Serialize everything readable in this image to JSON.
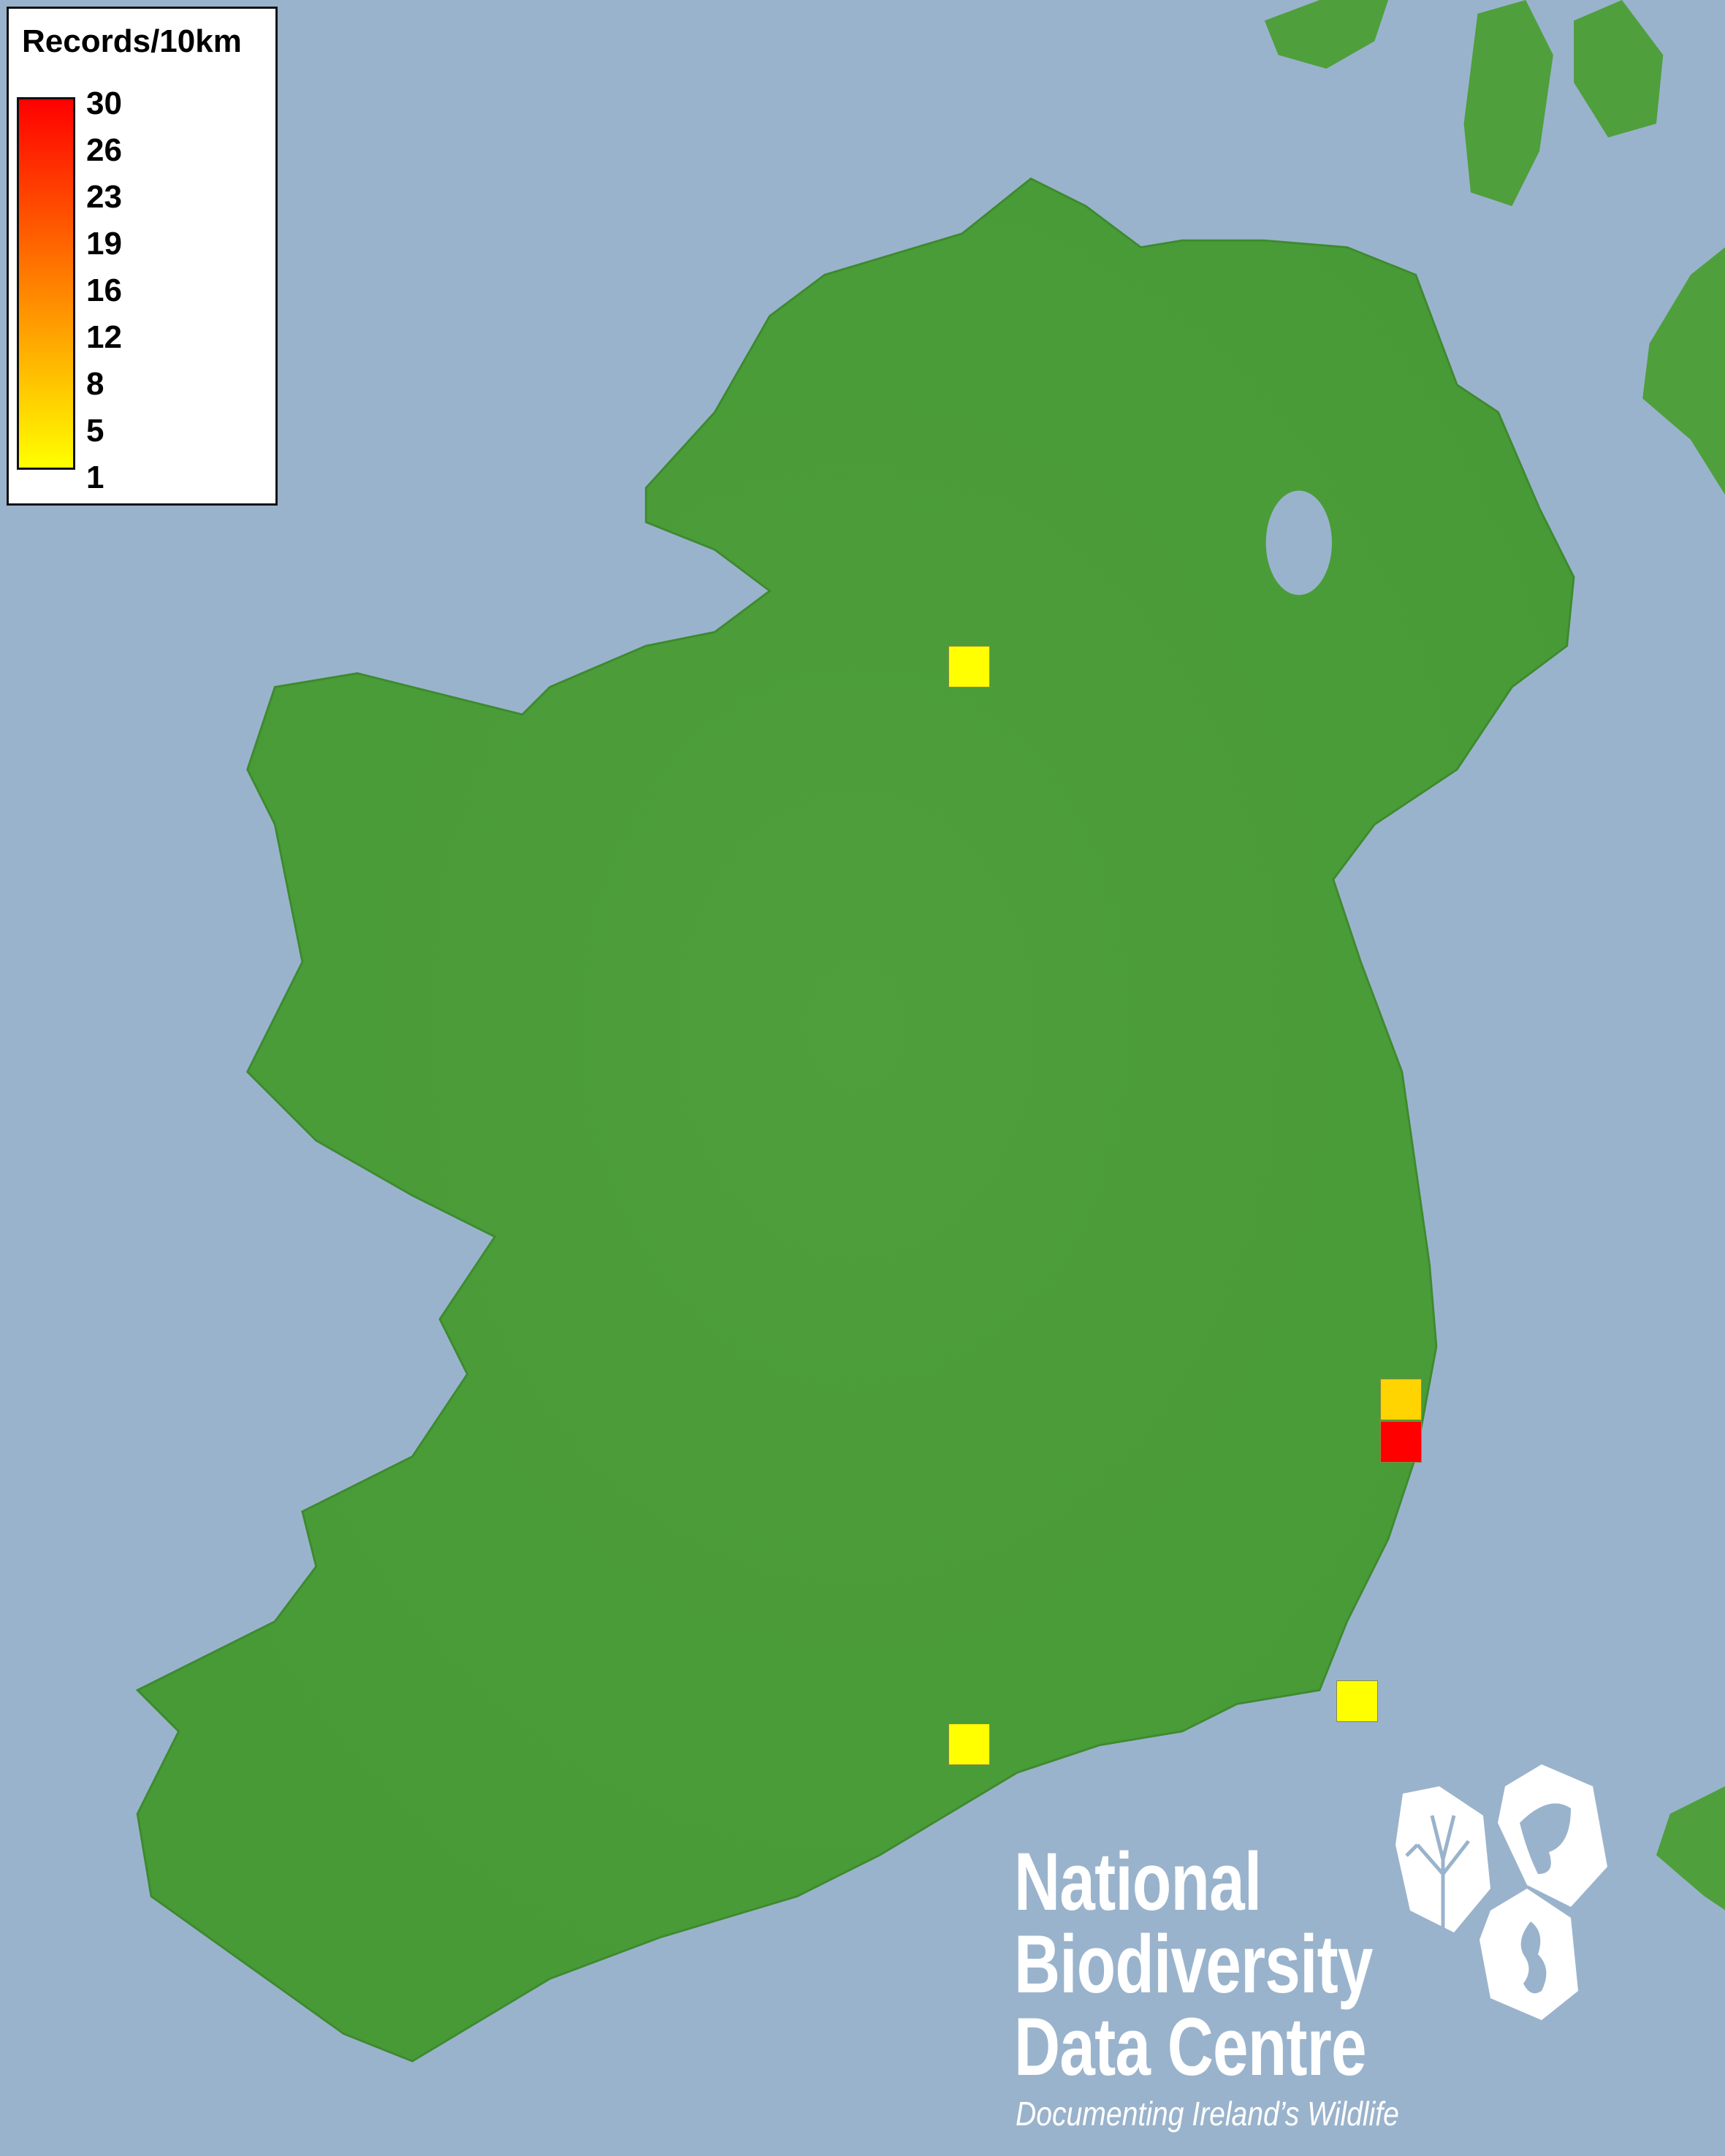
{
  "map": {
    "colors": {
      "sea": "#9ab3cc",
      "land": "#4f9f3c",
      "land_highlight": "#8fbf6a"
    },
    "region": "Ireland"
  },
  "legend": {
    "title": "Records/10km",
    "labels": [
      "30",
      "26",
      "23",
      "19",
      "16",
      "12",
      "8",
      "5",
      "1"
    ],
    "color_min": "#ffff00",
    "color_max": "#ff0000"
  },
  "records": [
    {
      "id": "sq1",
      "color": "#ffff00",
      "approx_records": 1
    },
    {
      "id": "sq2",
      "color": "#ffd400",
      "approx_records": 8
    },
    {
      "id": "sq3",
      "color": "#ff0000",
      "approx_records": 30
    },
    {
      "id": "sq4",
      "color": "#ffff00",
      "approx_records": 1
    },
    {
      "id": "sq5",
      "color": "#ffff00",
      "approx_records": 1
    }
  ],
  "logo": {
    "line1": "National",
    "line2": "Biodiversity",
    "line3": "Data Centre",
    "tagline": "Documenting Ireland’s Wildlife",
    "icons": [
      "tree-icon",
      "butterfly-icon",
      "seahorse-icon"
    ]
  }
}
